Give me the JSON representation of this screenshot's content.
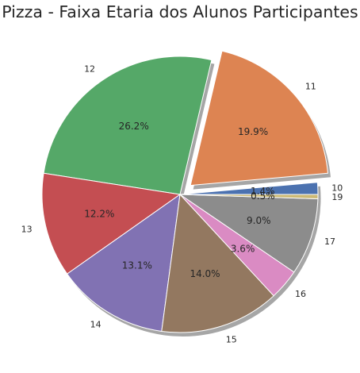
{
  "chart_data": {
    "type": "pie",
    "title": "Pizza - Faixa Etaria dos Alunos Participantes",
    "categories": [
      "10",
      "11",
      "12",
      "13",
      "14",
      "15",
      "16",
      "17",
      "19"
    ],
    "percent_labels": [
      "1.4%",
      "19.9%",
      "26.2%",
      "12.2%",
      "13.1%",
      "14.0%",
      "3.6%",
      "9.0%",
      "0.5%"
    ],
    "values": [
      1.4,
      19.9,
      26.2,
      12.2,
      13.1,
      14.0,
      3.6,
      9.0,
      0.5
    ],
    "exploded": [
      "11"
    ],
    "shadow": true,
    "colors": [
      "#4c72b0",
      "#dd8452",
      "#55a868",
      "#c44e52",
      "#8172b3",
      "#937860",
      "#da8bc3",
      "#8c8c8c",
      "#ccb974"
    ]
  }
}
